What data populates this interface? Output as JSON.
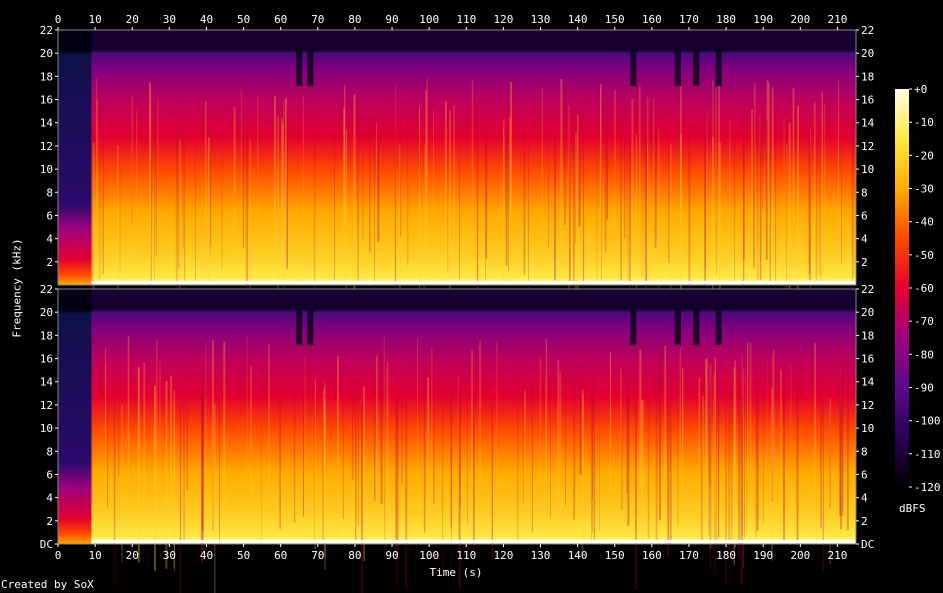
{
  "chart_data": {
    "type": "heatmap",
    "title": "",
    "xlabel": "Time (s)",
    "ylabel": "Frequency (kHz)",
    "xlim": [
      0,
      215
    ],
    "x_ticks": [
      0,
      10,
      20,
      30,
      40,
      50,
      60,
      70,
      80,
      90,
      100,
      110,
      120,
      130,
      140,
      150,
      160,
      170,
      180,
      190,
      200,
      210
    ],
    "ylim": [
      0,
      22
    ],
    "y_ticks_top_channel": [
      "2",
      "4",
      "6",
      "8",
      "10",
      "12",
      "14",
      "16",
      "18",
      "20",
      "22"
    ],
    "y_ticks_bottom_channel": [
      "DC",
      "2",
      "4",
      "6",
      "8",
      "10",
      "12",
      "14",
      "16",
      "18",
      "20",
      "22"
    ],
    "channels": 2,
    "colorbar": {
      "unit": "dBFS",
      "range": [
        -120,
        0
      ],
      "ticks": [
        "+0",
        "-10",
        "-20",
        "-30",
        "-40",
        "-50",
        "-60",
        "-70",
        "-80",
        "-90",
        "-100",
        "-110",
        "-120"
      ],
      "colors": [
        "#000000",
        "#2a0057",
        "#5a0a8c",
        "#a0007f",
        "#e3002f",
        "#ff4a00",
        "#ffab00",
        "#ffe844",
        "#ffffe8"
      ]
    },
    "features": {
      "quiet_intro_end_s": 9,
      "bandlimit_khz": 20,
      "dips_s": [
        65,
        68,
        155,
        167,
        172,
        178
      ]
    }
  },
  "credit": "Created by SoX"
}
